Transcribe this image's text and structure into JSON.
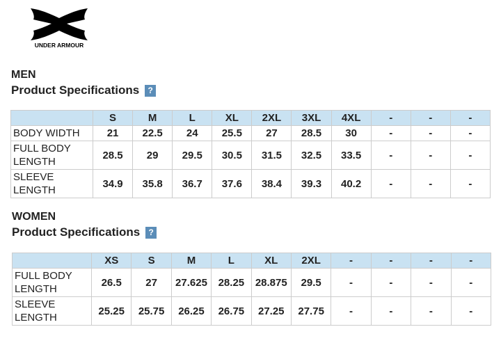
{
  "logo": {
    "text": "UNDER ARMOUR"
  },
  "sections": [
    {
      "title": "MEN",
      "subtitle": "Product Specifications",
      "help": "?",
      "table": {
        "header": [
          "S",
          "M",
          "L",
          "XL",
          "2XL",
          "3XL",
          "4XL",
          "-",
          "-",
          "-"
        ],
        "rows": [
          [
            "BODY WIDTH",
            "21",
            "22.5",
            "24",
            "25.5",
            "27",
            "28.5",
            "30",
            "-",
            "-",
            "-"
          ],
          [
            "FULL BODY LENGTH",
            "28.5",
            "29",
            "29.5",
            "30.5",
            "31.5",
            "32.5",
            "33.5",
            "-",
            "-",
            "-"
          ],
          [
            "SLEEVE LENGTH",
            "34.9",
            "35.8",
            "36.7",
            "37.6",
            "38.4",
            "39.3",
            "40.2",
            "-",
            "-",
            "-"
          ]
        ]
      }
    },
    {
      "title": "WOMEN",
      "subtitle": "Product Specifications",
      "help": "?",
      "table": {
        "header": [
          "XS",
          "S",
          "M",
          "L",
          "XL",
          "2XL",
          "-",
          "-",
          "-",
          "-"
        ],
        "rows": [
          [
            "FULL BODY LENGTH",
            "26.5",
            "27",
            "27.625",
            "28.25",
            "28.875",
            "29.5",
            "-",
            "-",
            "-",
            "-"
          ],
          [
            "SLEEVE LENGTH",
            "25.25",
            "25.75",
            "26.25",
            "26.75",
            "27.25",
            "27.75",
            "-",
            "-",
            "-",
            "-"
          ]
        ]
      }
    }
  ]
}
